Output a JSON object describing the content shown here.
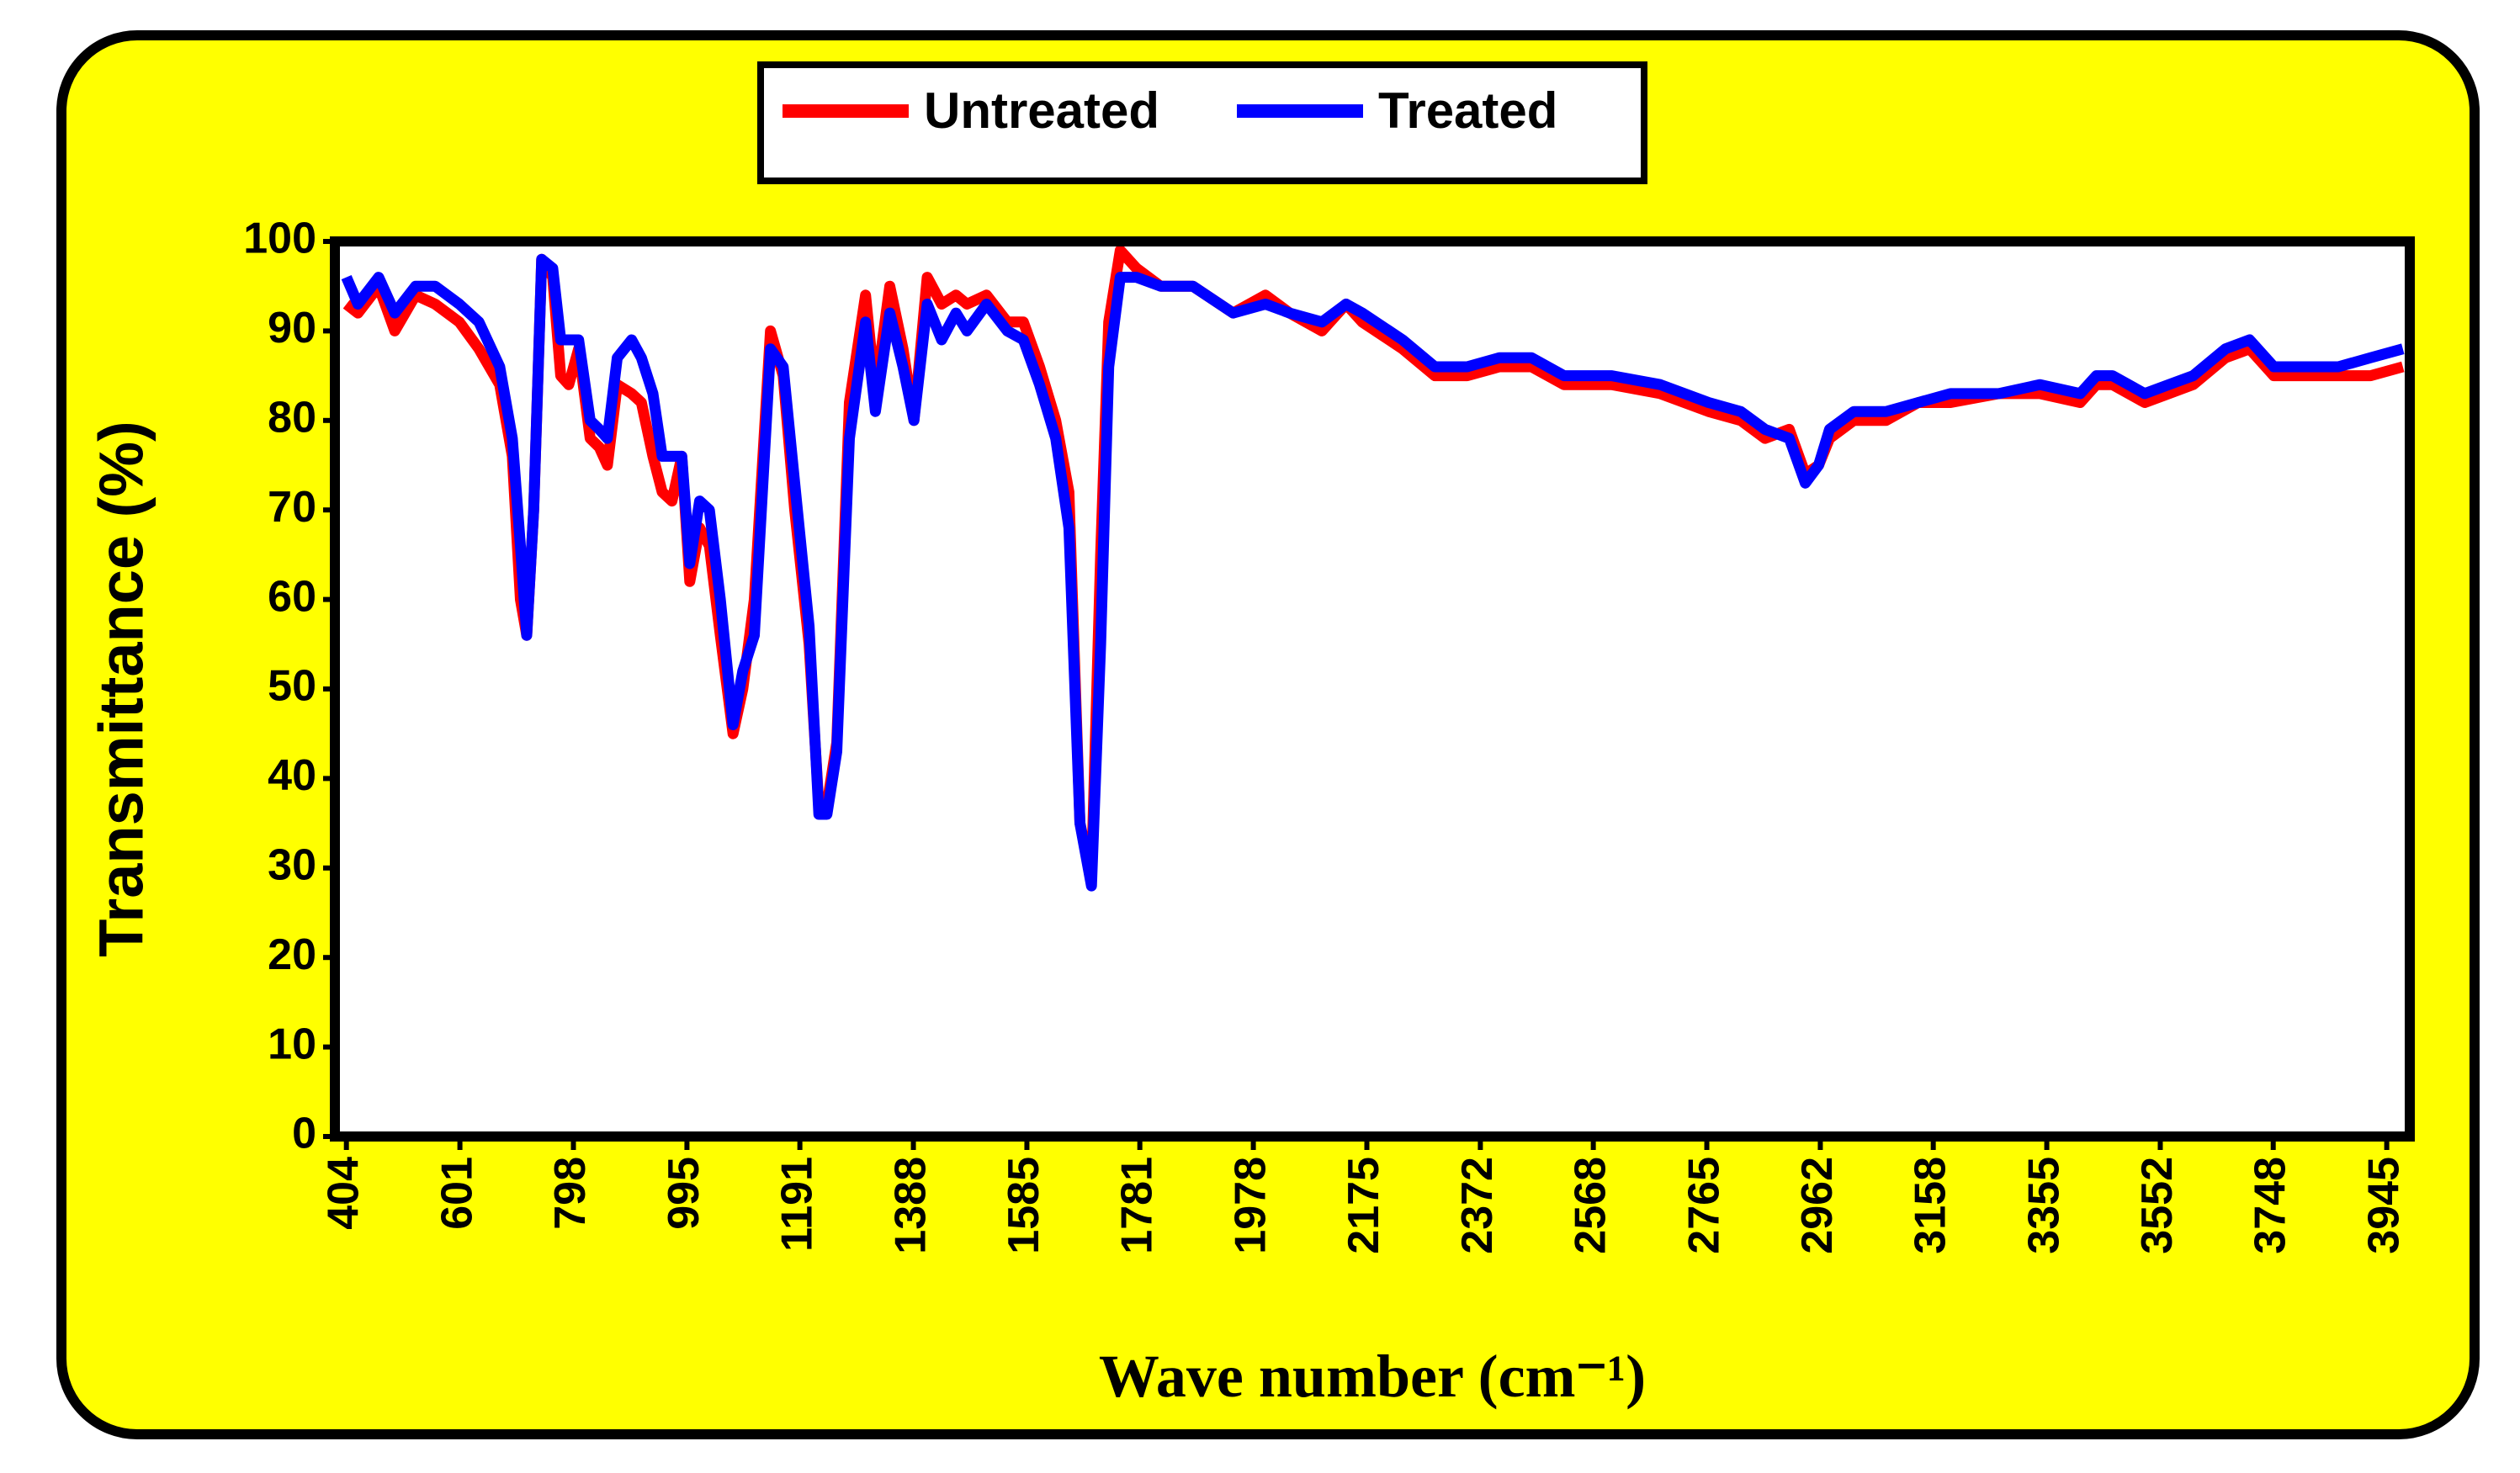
{
  "chart_data": {
    "type": "line",
    "x_label": "Wave number (cm⁻¹)",
    "y_label": "Transmittance (%)",
    "x": [
      404,
      424,
      460,
      488,
      524,
      558,
      600,
      634,
      670,
      692,
      706,
      717,
      729,
      743,
      762,
      776,
      790,
      807,
      827,
      843,
      857,
      874,
      899,
      916,
      936,
      952,
      969,
      986,
      1000,
      1017,
      1034,
      1053,
      1075,
      1092,
      1112,
      1140,
      1162,
      1182,
      1207,
      1224,
      1238,
      1255,
      1277,
      1305,
      1322,
      1347,
      1370,
      1389,
      1412,
      1437,
      1462,
      1481,
      1515,
      1551,
      1579,
      1607,
      1635,
      1658,
      1677,
      1697,
      1713,
      1727,
      1747,
      1775,
      1817,
      1873,
      1943,
      1999,
      2041,
      2097,
      2139,
      2167,
      2237,
      2293,
      2349,
      2405,
      2461,
      2517,
      2600,
      2684,
      2768,
      2824,
      2866,
      2908,
      2936,
      2959,
      2978,
      3020,
      3076,
      3132,
      3188,
      3272,
      3343,
      3413,
      3441,
      3469,
      3525,
      3567,
      3609,
      3665,
      3707,
      3749,
      3805,
      3861,
      3917,
      3973
    ],
    "series": [
      {
        "name": "Untreated",
        "color": "#ff0000",
        "values": [
          93,
          92,
          95,
          90,
          94,
          93,
          91,
          88,
          84,
          76,
          60,
          56,
          70,
          98,
          96,
          85,
          84,
          88,
          78,
          77,
          75,
          84,
          83,
          82,
          76,
          72,
          71,
          76,
          62,
          68,
          66,
          56,
          45,
          50,
          60,
          90,
          85,
          70,
          55,
          37,
          37,
          44,
          82,
          94,
          83,
          95,
          88,
          80,
          96,
          93,
          94,
          93,
          94,
          91,
          91,
          86,
          80,
          72,
          35,
          29,
          65,
          91,
          99,
          97,
          95,
          95,
          92,
          94,
          92,
          90,
          93,
          91,
          88,
          85,
          85,
          86,
          86,
          84,
          84,
          83,
          81,
          80,
          78,
          79,
          74,
          75,
          78,
          80,
          80,
          82,
          82,
          83,
          83,
          82,
          84,
          84,
          82,
          83,
          84,
          87,
          88,
          85,
          85,
          85,
          85,
          86
        ]
      },
      {
        "name": "Treated",
        "color": "#0000ff",
        "values": [
          96,
          93,
          96,
          92,
          95,
          95,
          93,
          91,
          86,
          78,
          66,
          56,
          70,
          98,
          97,
          89,
          89,
          89,
          80,
          79,
          78,
          87,
          89,
          87,
          83,
          76,
          76,
          76,
          64,
          71,
          70,
          60,
          46,
          52,
          56,
          88,
          86,
          73,
          57,
          36,
          36,
          43,
          78,
          91,
          81,
          92,
          86,
          80,
          93,
          89,
          92,
          90,
          93,
          90,
          89,
          84,
          78,
          68,
          35,
          28,
          55,
          86,
          96,
          96,
          95,
          95,
          92,
          93,
          92,
          91,
          93,
          92,
          89,
          86,
          86,
          87,
          87,
          85,
          85,
          84,
          82,
          81,
          79,
          78,
          73,
          75,
          79,
          81,
          81,
          82,
          83,
          83,
          84,
          83,
          85,
          85,
          83,
          84,
          85,
          88,
          89,
          86,
          86,
          86,
          87,
          88
        ]
      }
    ],
    "xlim": [
      384,
      3985
    ],
    "xticks": [
      404,
      601,
      798,
      995,
      1191,
      1388,
      1585,
      1781,
      1978,
      2175,
      2372,
      2568,
      2765,
      2962,
      3158,
      3355,
      3552,
      3748,
      3945
    ],
    "ylim": [
      0,
      100
    ],
    "yticks": [
      0,
      10,
      20,
      30,
      40,
      50,
      60,
      70,
      80,
      90,
      100
    ],
    "grid": false,
    "legend": "top"
  }
}
